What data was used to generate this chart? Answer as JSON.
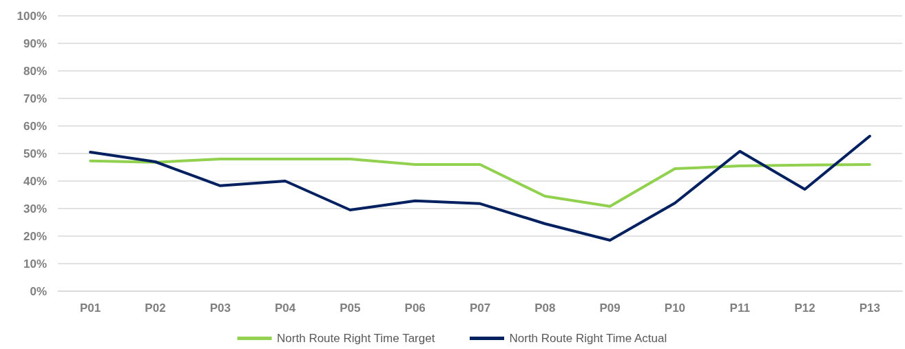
{
  "chart_data": {
    "type": "line",
    "categories": [
      "P01",
      "P02",
      "P03",
      "P04",
      "P05",
      "P06",
      "P07",
      "P08",
      "P09",
      "P10",
      "P11",
      "P12",
      "P13"
    ],
    "series": [
      {
        "name": "North Route Right Time Target",
        "color": "#92d050",
        "values": [
          47.3,
          46.8,
          48,
          48,
          48,
          46,
          46,
          34.5,
          30.8,
          44.5,
          45.5,
          45.8,
          46
        ]
      },
      {
        "name": "North Route Right Time Actual",
        "color": "#002060",
        "values": [
          50.5,
          47,
          38.3,
          40,
          29.5,
          32.8,
          31.8,
          24.5,
          18.5,
          32,
          50.8,
          37,
          56.3
        ]
      }
    ],
    "ylim": [
      0,
      100
    ],
    "yticks": [
      {
        "value": 0,
        "label": "0%"
      },
      {
        "value": 10,
        "label": "10%"
      },
      {
        "value": 20,
        "label": "20%"
      },
      {
        "value": 30,
        "label": "30%"
      },
      {
        "value": 40,
        "label": "40%"
      },
      {
        "value": 50,
        "label": "50%"
      },
      {
        "value": 60,
        "label": "60%"
      },
      {
        "value": 70,
        "label": "70%"
      },
      {
        "value": 80,
        "label": "80%"
      },
      {
        "value": 90,
        "label": "90%"
      },
      {
        "value": 100,
        "label": "100%"
      }
    ],
    "grid": "y",
    "legend": "bottom",
    "marker": "none",
    "line_style": "solid"
  }
}
